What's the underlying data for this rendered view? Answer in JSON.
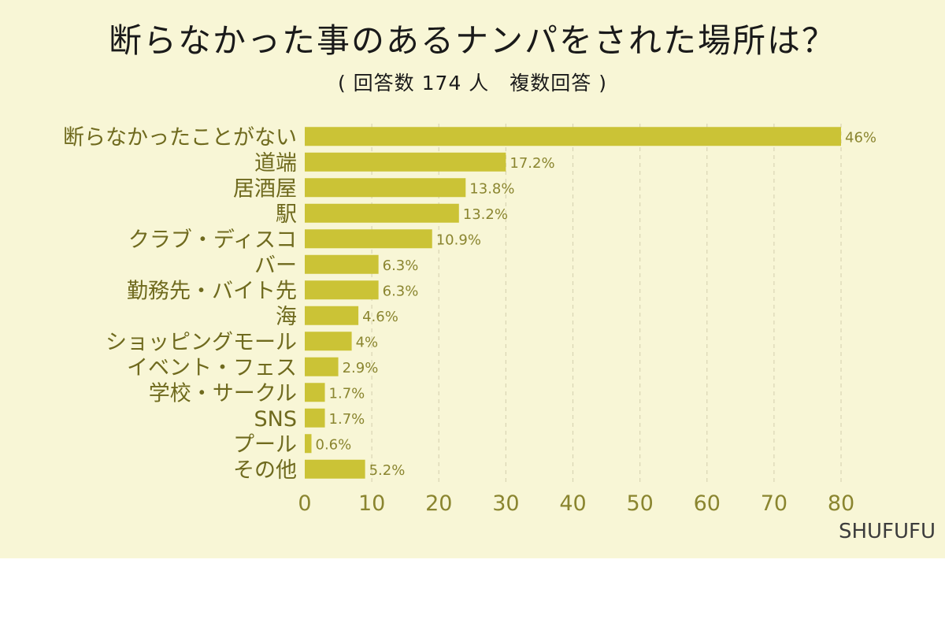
{
  "header": {
    "title": "断らなかった事のあるナンパをされた場所は？",
    "subtitle": "( 回答数 174 人　複数回答 )"
  },
  "credit": "SHUFUFU",
  "colors": {
    "background": "#f8f6d6",
    "bar": "#cbc336",
    "grid": "#d9d5b4"
  },
  "chart_data": {
    "type": "bar",
    "orientation": "horizontal",
    "title": "断らなかった事のあるナンパをされた場所は？",
    "subtitle": "( 回答数 174 人　複数回答 )",
    "categories": [
      "断らなかったことがない",
      "道端",
      "居酒屋",
      "駅",
      "クラブ・ディスコ",
      "バー",
      "勤務先・バイト先",
      "海",
      "ショッピングモール",
      "イベント・フェス",
      "学校・サークル",
      "SNS",
      "プール",
      "その他"
    ],
    "values": [
      80,
      30,
      24,
      23,
      19,
      11,
      11,
      8,
      7,
      5,
      3,
      3,
      1,
      9
    ],
    "value_labels": [
      "46%",
      "17.2%",
      "13.8%",
      "13.2%",
      "10.9%",
      "6.3%",
      "6.3%",
      "4.6%",
      "4%",
      "2.9%",
      "1.7%",
      "1.7%",
      "0.6%",
      "5.2%"
    ],
    "xlim": [
      0,
      80
    ],
    "xticks": [
      "0",
      "10",
      "20",
      "30",
      "40",
      "50",
      "60",
      "70",
      "80"
    ],
    "grid": "vertical-dashed",
    "legend": "none"
  }
}
